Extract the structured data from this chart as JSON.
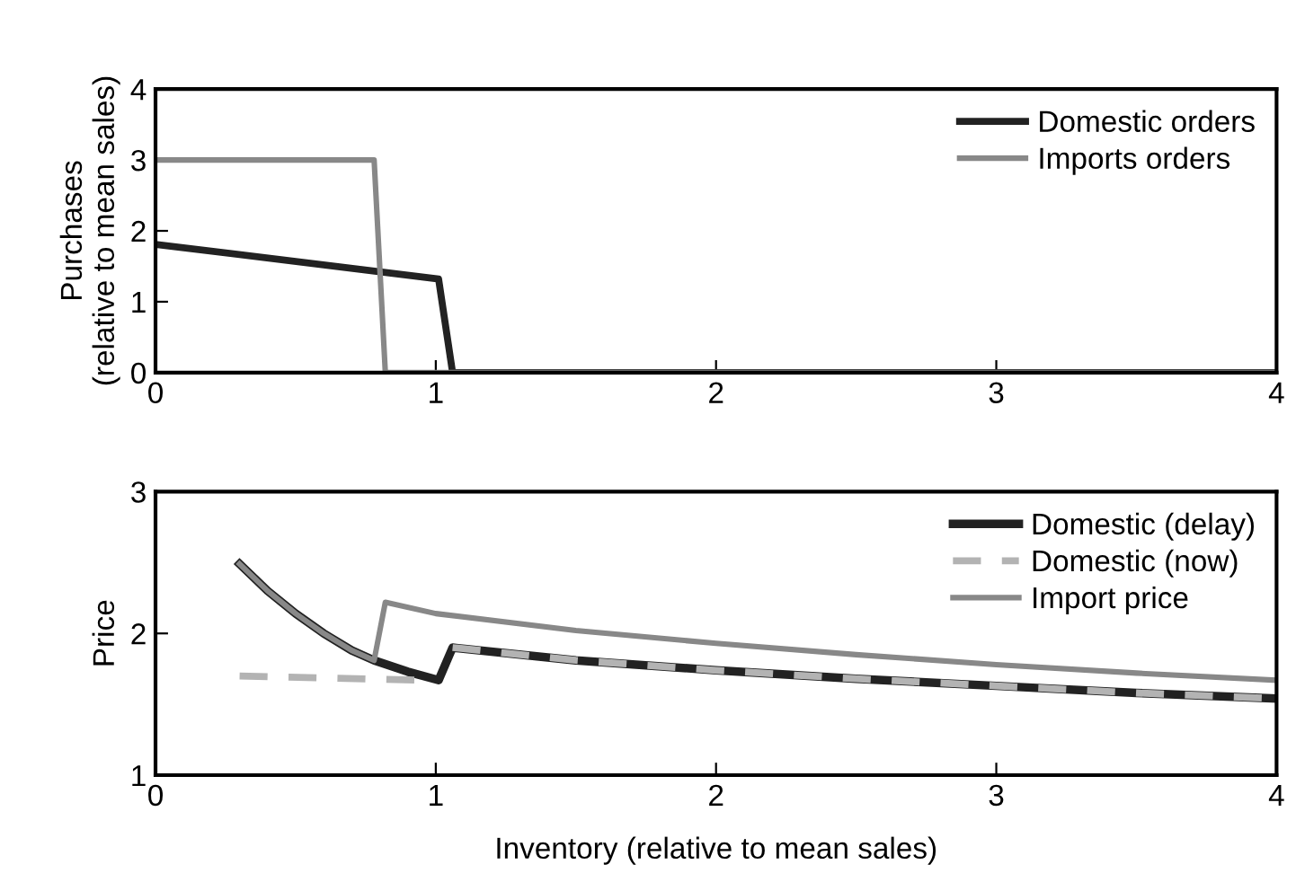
{
  "chart_data": [
    {
      "type": "line",
      "ylabel": "Purchases\n(relative to mean sales)",
      "xlim": [
        0,
        4
      ],
      "xticks": [
        0,
        1,
        2,
        3,
        4
      ],
      "ylim": [
        0,
        4
      ],
      "yticks": [
        0,
        1,
        2,
        3,
        4
      ],
      "legend": "top right",
      "line_style": "solid",
      "series": [
        {
          "name": "Domestic orders",
          "color": "#222222",
          "x": [
            0,
            1.01,
            1.06,
            4
          ],
          "values": [
            1.81,
            1.32,
            0,
            0
          ]
        },
        {
          "name": "Imports orders",
          "color": "#888888",
          "x": [
            0,
            0.78,
            0.82,
            4
          ],
          "values": [
            3,
            3,
            0,
            0
          ]
        }
      ]
    },
    {
      "type": "line",
      "ylabel": "Price",
      "xlabel": "Inventory (relative to mean sales)",
      "xlim": [
        0,
        4
      ],
      "xticks": [
        0,
        1,
        2,
        3,
        4
      ],
      "ylim": [
        1,
        3
      ],
      "yticks": [
        1,
        2,
        3
      ],
      "legend": "top right",
      "series": [
        {
          "name": "Domestic (delay)",
          "color": "#222222",
          "line_style": "solid",
          "x": [
            0.3,
            0.4,
            0.5,
            0.6,
            0.7,
            0.78,
            0.9,
            1.01,
            1.06,
            1.5,
            2,
            2.5,
            3,
            3.5,
            4
          ],
          "values": [
            2.49,
            2.3,
            2.14,
            2.0,
            1.88,
            1.81,
            1.73,
            1.67,
            1.9,
            1.81,
            1.74,
            1.68,
            1.63,
            1.58,
            1.54
          ]
        },
        {
          "name": "Domestic (now)",
          "color": "#b3b3b3",
          "line_style": "dashed",
          "x": [
            0.3,
            0.95,
            1.0,
            1.06,
            1.5,
            2,
            2.5,
            3,
            3.5,
            4
          ],
          "values": [
            1.7,
            1.67,
            null,
            1.9,
            1.81,
            1.74,
            1.68,
            1.63,
            1.58,
            1.54
          ]
        },
        {
          "name": "Import price",
          "color": "#888888",
          "line_style": "solid",
          "x": [
            0.3,
            0.4,
            0.5,
            0.6,
            0.7,
            0.78,
            0.82,
            1.0,
            1.5,
            2,
            2.5,
            3,
            3.5,
            4
          ],
          "values": [
            2.49,
            2.3,
            2.14,
            2.0,
            1.88,
            1.81,
            2.22,
            2.14,
            2.02,
            1.93,
            1.85,
            1.78,
            1.72,
            1.67
          ]
        }
      ]
    }
  ]
}
